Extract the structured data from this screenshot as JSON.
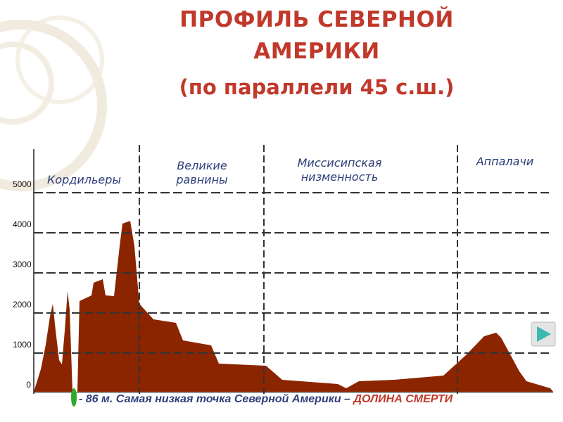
{
  "title": {
    "line1": "ПРОФИЛЬ СЕВЕРНОЙ",
    "line2": "АМЕРИКИ",
    "line3": "(по параллели 45  с.ш.)"
  },
  "regions": [
    {
      "label": "Кордильеры"
    },
    {
      "label": "Великие равнины"
    },
    {
      "label": "Миссисипская низменность"
    },
    {
      "label": "Аппалачи"
    }
  ],
  "y_axis": {
    "ticks": [
      "5000",
      "4000",
      "3000",
      "2000",
      "1000",
      "0"
    ]
  },
  "caption": {
    "main": "- 86 м. Самая низкая точка Северной Америки – ",
    "place": "ДОЛИНА СМЕРТИ"
  },
  "colors": {
    "title": "#c0392b",
    "profile_fill": "#8b2500",
    "labels": "#2d3f7a",
    "death_valley_marker": "#2ea82e",
    "nav_button": "#3bb8b0"
  },
  "icons": {
    "next": "play-arrow-icon"
  }
}
